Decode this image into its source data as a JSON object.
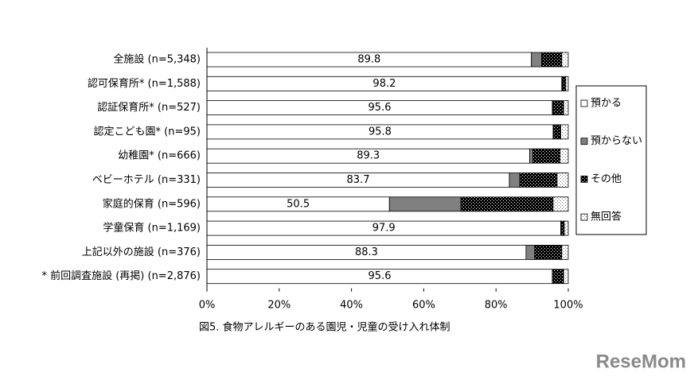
{
  "chart_data": {
    "type": "stacked_barh",
    "title": "図5. 食物アレルギーのある園児・児童の受け入れ体制",
    "categories": [
      "全施設 (n=5,348)",
      "認可保育所* (n=1,588)",
      "認証保育所* (n=527)",
      "認定こども園* (n=95)",
      "幼稚園* (n=666)",
      "ベビーホテル (n=331)",
      "家庭的保育 (n=596)",
      "学童保育 (n=1,169)",
      "上記以外の施設 (n=376)",
      "* 前回調査施設 (再掲) (n=2,876)"
    ],
    "series": [
      {
        "name": "預かる",
        "color": "#ffffff",
        "values": [
          89.8,
          98.2,
          95.6,
          95.8,
          89.3,
          83.7,
          50.5,
          97.9,
          88.3,
          95.6
        ]
      },
      {
        "name": "預からない",
        "color": "#808080",
        "values": [
          2.8,
          0.1,
          0.2,
          0,
          0.9,
          2.9,
          19.8,
          0.2,
          2.4,
          0
        ]
      },
      {
        "name": "その他",
        "color": "#000000",
        "values": [
          5.6,
          1.0,
          2.9,
          2.1,
          7.5,
          10.3,
          25.5,
          0.8,
          7.5,
          3.1
        ]
      },
      {
        "name": "無回答",
        "color": "#ffffff",
        "values": [
          1.8,
          0.7,
          1.3,
          2.1,
          2.3,
          3.1,
          4.2,
          1.1,
          1.8,
          1.3
        ]
      }
    ],
    "xlim": [
      0,
      100
    ],
    "xticks": [
      {
        "value": 0,
        "label": "0%"
      },
      {
        "value": 20,
        "label": "20%"
      },
      {
        "value": 40,
        "label": "40%"
      },
      {
        "value": 60,
        "label": "60%"
      },
      {
        "value": 80,
        "label": "80%"
      },
      {
        "value": 100,
        "label": "100%"
      }
    ]
  },
  "watermark": "ReseMom"
}
